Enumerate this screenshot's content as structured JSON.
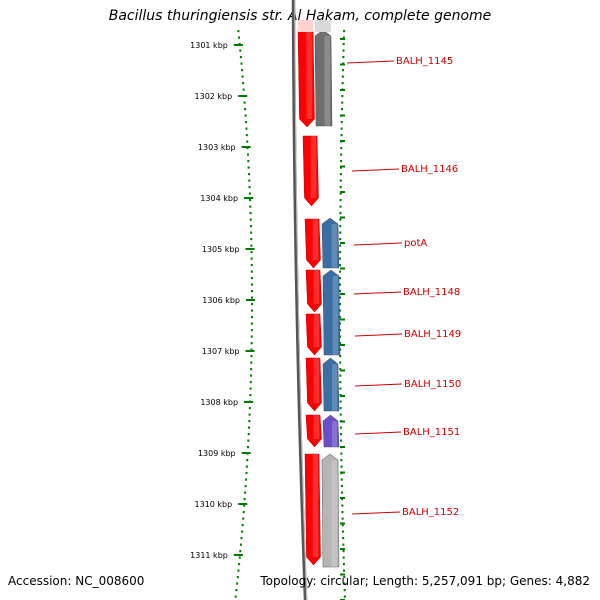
{
  "title": "Bacillus thuringiensis str. Al Hakam, complete genome",
  "footer": {
    "accession": "Accession: NC_008600",
    "stats": "Topology: circular; Length: 5,257,091 bp; Genes: 4,882"
  },
  "colors": {
    "scale": "#007a00",
    "backbone": "#555555",
    "forward": "#ff0000",
    "reverse_grey_dark": "#6e6e6e",
    "reverse_blue": "#3a6ea5",
    "reverse_purple": "#6a4fc8",
    "reverse_grey_light": "#b5b5b5",
    "label": "#cc0000"
  },
  "scale": {
    "unit": "kbp",
    "ticks": [
      "1301 kbp",
      "1302 kbp",
      "1303 kbp",
      "1304 kbp",
      "1305 kbp",
      "1306 kbp",
      "1307 kbp",
      "1308 kbp",
      "1309 kbp",
      "1310 kbp",
      "1311 kbp"
    ]
  },
  "genes": [
    {
      "name": "BALH_1145"
    },
    {
      "name": "BALH_1146"
    },
    {
      "name": "potA"
    },
    {
      "name": "BALH_1148"
    },
    {
      "name": "BALH_1149"
    },
    {
      "name": "BALH_1150"
    },
    {
      "name": "BALH_1151"
    },
    {
      "name": "BALH_1152"
    }
  ]
}
